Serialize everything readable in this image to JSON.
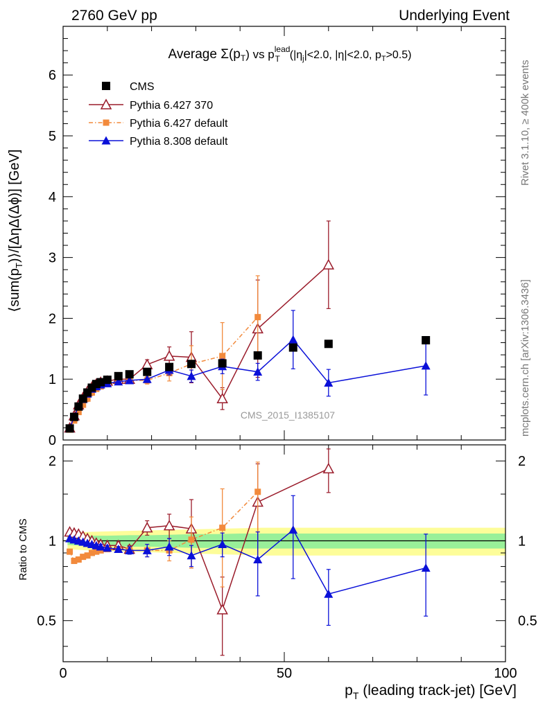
{
  "header": {
    "left": "2760 GeV pp",
    "right": "Underlying Event"
  },
  "side": {
    "rivet": "Rivet 3.1.10, ≥ 400k events",
    "mcplots": "mcplots.cern.ch [arXiv:1306.3436]"
  },
  "watermark": "CMS_2015_I1385107",
  "colors": {
    "cms": "#000000",
    "py6_370": "#9a1b2a",
    "py6_def": "#f28a3c",
    "py8": "#0a10d8",
    "band_inner": "#99f099",
    "band_outer": "#fdfd99"
  },
  "chart_data": [
    {
      "type": "scatter",
      "panel": "main",
      "title": "Average Σ(p_T) vs p_T^lead (|η_j|<2.0, |η|<2.0, p_T>0.5)",
      "xlabel": "p_T (leading track-jet) [GeV]",
      "ylabel": "⟨sum(p_T)⟩/[ΔηΔ(Δϕ)] [GeV]",
      "xlim": [
        0,
        100
      ],
      "ylim": [
        0,
        6.8
      ],
      "yticks": [
        0,
        1,
        2,
        3,
        4,
        5,
        6
      ],
      "xticks": [
        0,
        50,
        100
      ],
      "legend_position": "top-left",
      "series": [
        {
          "name": "CMS",
          "key": "cms",
          "marker": "square-filled",
          "line": "none",
          "x": [
            1.5,
            2.5,
            3.5,
            4.5,
            5.5,
            6.5,
            7.5,
            8.5,
            10,
            12.5,
            15,
            19,
            24,
            29,
            36,
            44,
            52,
            60,
            82
          ],
          "y": [
            0.19,
            0.38,
            0.55,
            0.68,
            0.78,
            0.86,
            0.92,
            0.95,
            0.99,
            1.05,
            1.08,
            1.12,
            1.2,
            1.25,
            1.26,
            1.39,
            1.52,
            1.58,
            1.64
          ],
          "err": [
            0,
            0,
            0,
            0,
            0,
            0,
            0,
            0,
            0,
            0,
            0,
            0,
            0,
            0,
            0,
            0,
            0,
            0,
            0
          ]
        },
        {
          "name": "Pythia 6.427 370",
          "key": "py6_370",
          "marker": "triangle-open",
          "line": "solid",
          "x": [
            1.5,
            2.5,
            3.5,
            4.5,
            5.5,
            6.5,
            7.5,
            8.5,
            10,
            12.5,
            15,
            19,
            24,
            29,
            36,
            44,
            60
          ],
          "y": [
            0.2,
            0.4,
            0.58,
            0.7,
            0.8,
            0.87,
            0.92,
            0.95,
            0.97,
            1.0,
            1.0,
            1.24,
            1.38,
            1.36,
            0.68,
            1.83,
            2.88
          ],
          "err": [
            0.01,
            0.01,
            0.01,
            0.01,
            0.01,
            0.01,
            0.01,
            0.02,
            0.02,
            0.03,
            0.03,
            0.08,
            0.15,
            0.42,
            0.18,
            0.8,
            0.72
          ]
        },
        {
          "name": "Pythia 6.427 default",
          "key": "py6_def",
          "marker": "square-filled-small",
          "line": "dashdot",
          "x": [
            1.5,
            2.5,
            3.5,
            4.5,
            5.5,
            6.5,
            7.5,
            8.5,
            10,
            12.5,
            15,
            19,
            24,
            29,
            36,
            44
          ],
          "y": [
            0.17,
            0.32,
            0.46,
            0.58,
            0.68,
            0.78,
            0.84,
            0.88,
            0.92,
            0.96,
            0.98,
            0.98,
            1.1,
            1.25,
            1.38,
            2.02
          ],
          "err": [
            0.01,
            0.01,
            0.01,
            0.01,
            0.01,
            0.01,
            0.01,
            0.02,
            0.02,
            0.03,
            0.03,
            0.06,
            0.13,
            0.3,
            0.55,
            0.68
          ]
        },
        {
          "name": "Pythia 8.308 default",
          "key": "py8",
          "marker": "triangle-filled",
          "line": "solid",
          "x": [
            1.5,
            2.5,
            3.5,
            4.5,
            5.5,
            6.5,
            7.5,
            8.5,
            10,
            12.5,
            15,
            19,
            24,
            29,
            36,
            44,
            52,
            60,
            82
          ],
          "y": [
            0.19,
            0.38,
            0.55,
            0.67,
            0.76,
            0.84,
            0.88,
            0.91,
            0.93,
            0.96,
            0.98,
            1.0,
            1.15,
            1.05,
            1.21,
            1.12,
            1.65,
            0.94,
            1.22
          ],
          "err": [
            0.01,
            0.01,
            0.01,
            0.01,
            0.01,
            0.01,
            0.01,
            0.02,
            0.02,
            0.03,
            0.03,
            0.05,
            0.08,
            0.1,
            0.12,
            0.14,
            0.48,
            0.22,
            0.48
          ]
        }
      ]
    },
    {
      "type": "scatter",
      "panel": "ratio",
      "ylabel": "Ratio to CMS",
      "xlabel": "p_T (leading track-jet) [GeV]",
      "xlim": [
        0,
        100
      ],
      "ylim": [
        0.35,
        2.3
      ],
      "yticks": [
        0.5,
        1,
        2
      ],
      "xticks": [
        0,
        50,
        100
      ],
      "reference": 1,
      "band": {
        "x": [
          1,
          3,
          6,
          10,
          15,
          20,
          25,
          30,
          35,
          40,
          45,
          55,
          65,
          75,
          85,
          100
        ],
        "inner": [
          0.035,
          0.04,
          0.045,
          0.045,
          0.05,
          0.05,
          0.055,
          0.06,
          0.06,
          0.065,
          0.065,
          0.065,
          0.065,
          0.065,
          0.065,
          0.065
        ],
        "outer": [
          0.07,
          0.075,
          0.08,
          0.085,
          0.09,
          0.095,
          0.1,
          0.105,
          0.11,
          0.115,
          0.12,
          0.12,
          0.12,
          0.12,
          0.12,
          0.12
        ]
      },
      "series": [
        {
          "name": "Pythia 6.427 370",
          "key": "py6_370",
          "marker": "triangle-open",
          "line": "solid",
          "x": [
            1.5,
            2.5,
            3.5,
            4.5,
            5.5,
            6.5,
            7.5,
            8.5,
            10,
            12.5,
            15,
            19,
            24,
            29,
            36,
            44,
            60
          ],
          "y": [
            1.08,
            1.07,
            1.06,
            1.04,
            1.02,
            1.0,
            0.98,
            0.97,
            0.96,
            0.96,
            0.93,
            1.12,
            1.14,
            1.11,
            0.55,
            1.4,
            1.87
          ],
          "err": [
            0.02,
            0.02,
            0.02,
            0.02,
            0.02,
            0.02,
            0.02,
            0.02,
            0.02,
            0.03,
            0.03,
            0.07,
            0.12,
            0.32,
            0.18,
            0.55,
            0.35
          ]
        },
        {
          "name": "Pythia 6.427 default",
          "key": "py6_def",
          "marker": "square-filled-small",
          "line": "dashdot",
          "x": [
            1.5,
            2.5,
            3.5,
            4.5,
            5.5,
            6.5,
            7.5,
            8.5,
            10,
            12.5,
            15,
            19,
            24,
            29,
            36,
            44
          ],
          "y": [
            0.91,
            0.84,
            0.85,
            0.87,
            0.88,
            0.9,
            0.91,
            0.92,
            0.93,
            0.93,
            0.92,
            0.92,
            0.92,
            1.01,
            1.12,
            1.53
          ],
          "err": [
            0.01,
            0.01,
            0.01,
            0.01,
            0.01,
            0.01,
            0.01,
            0.02,
            0.02,
            0.02,
            0.03,
            0.05,
            0.08,
            0.22,
            0.45,
            0.45
          ]
        },
        {
          "name": "Pythia 8.308 default",
          "key": "py8",
          "marker": "triangle-filled",
          "line": "solid",
          "x": [
            1.5,
            2.5,
            3.5,
            4.5,
            5.5,
            6.5,
            7.5,
            8.5,
            10,
            12.5,
            15,
            19,
            24,
            29,
            36,
            44,
            52,
            60,
            82
          ],
          "y": [
            1.02,
            1.01,
            1.0,
            0.99,
            0.98,
            0.97,
            0.96,
            0.95,
            0.94,
            0.93,
            0.92,
            0.92,
            0.95,
            0.88,
            0.97,
            0.85,
            1.1,
            0.63,
            0.79
          ],
          "err": [
            0.01,
            0.01,
            0.01,
            0.01,
            0.01,
            0.01,
            0.01,
            0.02,
            0.02,
            0.02,
            0.03,
            0.05,
            0.07,
            0.08,
            0.1,
            0.23,
            0.38,
            0.15,
            0.27
          ]
        }
      ]
    }
  ]
}
